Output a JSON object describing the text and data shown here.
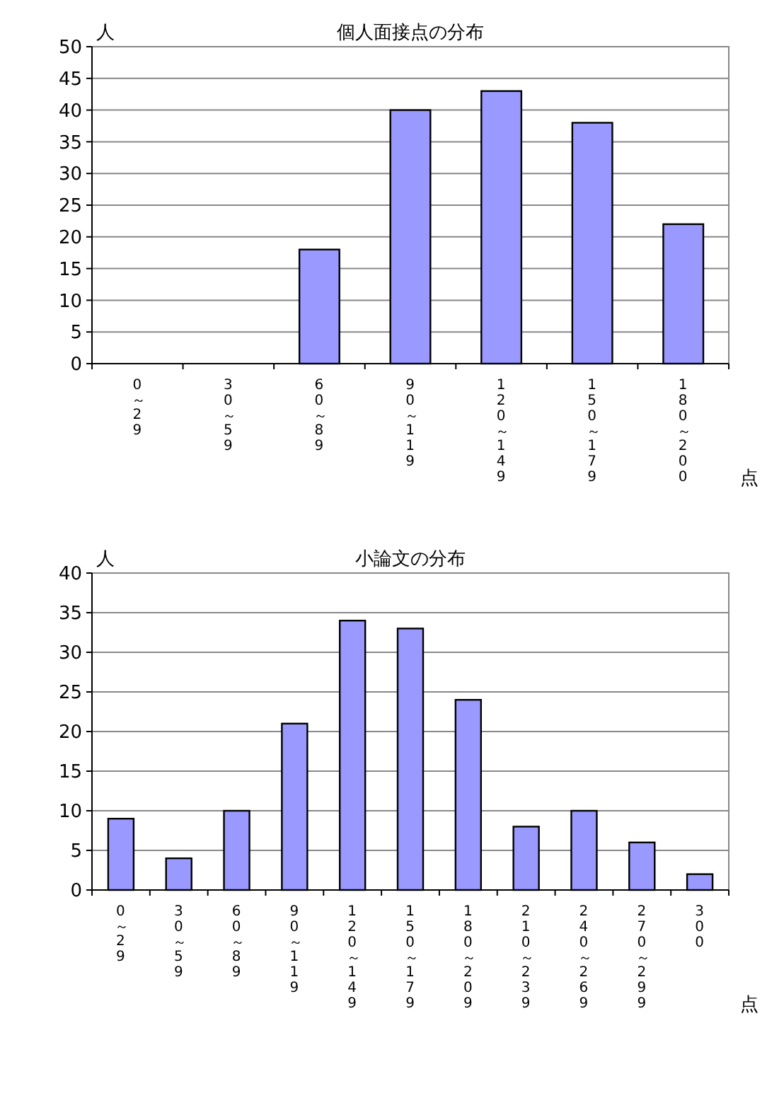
{
  "chart_data": [
    {
      "type": "bar",
      "title": "個人面接点の分布",
      "ylabel": "人",
      "xlabel": "点",
      "categories": [
        "0～29",
        "30～59",
        "60～89",
        "90～119",
        "120～149",
        "150～179",
        "180～200"
      ],
      "values": [
        0,
        0,
        18,
        40,
        43,
        38,
        22
      ],
      "color": "#9999ff",
      "ylim": [
        0,
        50
      ],
      "yticks": [
        0,
        5,
        10,
        15,
        20,
        25,
        30,
        35,
        40,
        45,
        50
      ],
      "grid": "y"
    },
    {
      "type": "bar",
      "title": "小論文の分布",
      "ylabel": "人",
      "xlabel": "点",
      "categories": [
        "0～29",
        "30～59",
        "60～89",
        "90～119",
        "120～149",
        "150～179",
        "180～209",
        "210～239",
        "240～269",
        "270～299",
        "300"
      ],
      "values": [
        9,
        4,
        10,
        21,
        34,
        33,
        24,
        8,
        10,
        6,
        2
      ],
      "color": "#9999ff",
      "ylim": [
        0,
        40
      ],
      "yticks": [
        0,
        5,
        10,
        15,
        20,
        25,
        30,
        35,
        40
      ],
      "grid": "y"
    }
  ]
}
